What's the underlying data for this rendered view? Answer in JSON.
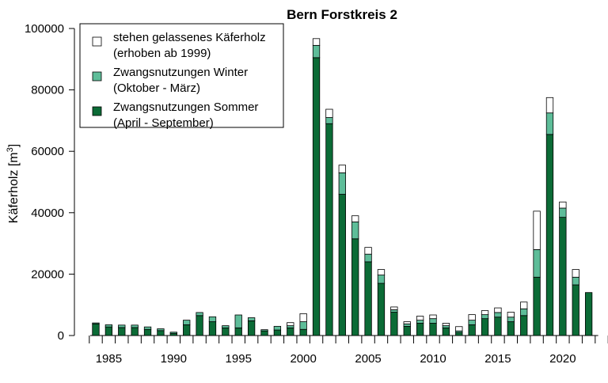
{
  "chart_data": {
    "type": "bar",
    "stacked": true,
    "title": "Bern Forstkreis 2",
    "ylabel": "Käferholz [m",
    "ylabel_superscript": "3",
    "ylabel_suffix": "]",
    "xlabel": "",
    "ylim": [
      0,
      100000
    ],
    "y_ticks": [
      0,
      20000,
      40000,
      60000,
      80000,
      100000
    ],
    "x_tick_labels": [
      "1985",
      "1990",
      "1995",
      "2000",
      "2005",
      "2010",
      "2015",
      "2020"
    ],
    "grid": false,
    "legend_position": "top-left",
    "categories": [
      1984,
      1985,
      1986,
      1987,
      1988,
      1989,
      1990,
      1991,
      1992,
      1993,
      1994,
      1995,
      1996,
      1997,
      1998,
      1999,
      2000,
      2001,
      2002,
      2003,
      2004,
      2005,
      2006,
      2007,
      2008,
      2009,
      2010,
      2011,
      2012,
      2013,
      2014,
      2015,
      2016,
      2017,
      2018,
      2019,
      2020,
      2021,
      2022
    ],
    "series": [
      {
        "name": "Zwangsnutzungen Sommer (April - September)",
        "color": "#0b6b36",
        "values": [
          3800,
          2800,
          2600,
          2600,
          2000,
          1600,
          700,
          3500,
          6500,
          4500,
          2500,
          2500,
          4800,
          1500,
          1800,
          2500,
          2000,
          90500,
          69000,
          46000,
          31500,
          24000,
          17000,
          7600,
          3000,
          4000,
          4000,
          2500,
          1000,
          3500,
          5500,
          6000,
          4500,
          6500,
          19000,
          65500,
          38500,
          16500,
          14000
        ]
      },
      {
        "name": "Zwangsnutzungen Winter (Oktober - März)",
        "color": "#5ebd99",
        "values": [
          300,
          700,
          800,
          800,
          800,
          600,
          400,
          1500,
          1000,
          1600,
          700,
          4200,
          1000,
          400,
          1200,
          700,
          2500,
          4000,
          2000,
          7000,
          5500,
          2500,
          2700,
          800,
          800,
          1000,
          1500,
          700,
          500,
          1500,
          1300,
          1500,
          1500,
          2200,
          9000,
          7000,
          3000,
          2500,
          0
        ]
      },
      {
        "name": "stehen gelassenes Käferholz (erhoben ab 1999)",
        "color": "#ffffff",
        "values": [
          0,
          0,
          0,
          0,
          0,
          0,
          0,
          0,
          0,
          0,
          0,
          0,
          0,
          0,
          0,
          1000,
          2600,
          2200,
          2700,
          2500,
          2000,
          2200,
          1800,
          900,
          700,
          1300,
          1200,
          800,
          1400,
          1800,
          1300,
          1500,
          1600,
          2200,
          12500,
          5000,
          2000,
          2500,
          0
        ]
      }
    ],
    "legend": [
      {
        "line1": "stehen gelassenes Käferholz",
        "line2": "(erhoben ab 1999)",
        "color": "#ffffff"
      },
      {
        "line1": "Zwangsnutzungen Winter",
        "line2": "(Oktober - März)",
        "color": "#5ebd99"
      },
      {
        "line1": "Zwangsnutzungen Sommer",
        "line2": "(April - September)",
        "color": "#0b6b36"
      }
    ]
  }
}
